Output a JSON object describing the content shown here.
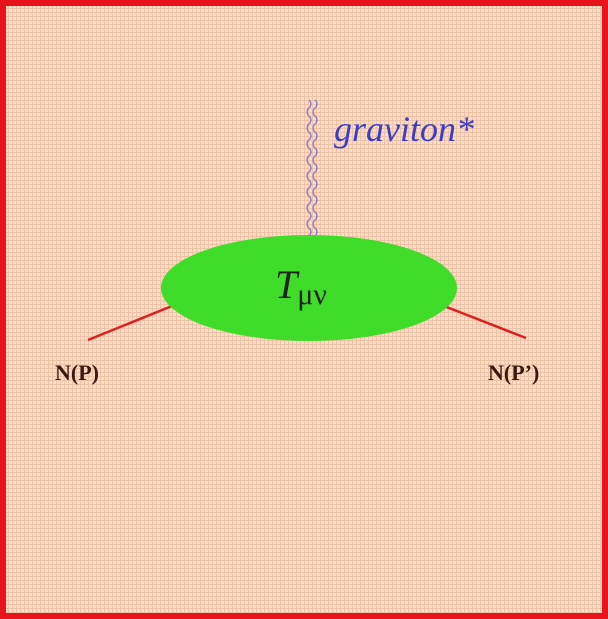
{
  "graviton_label": "graviton*",
  "vertex_label": {
    "main": "T",
    "subscript": "μν"
  },
  "nodes": [
    {
      "label": "N(P)"
    },
    {
      "label": "N(P’)"
    }
  ]
}
